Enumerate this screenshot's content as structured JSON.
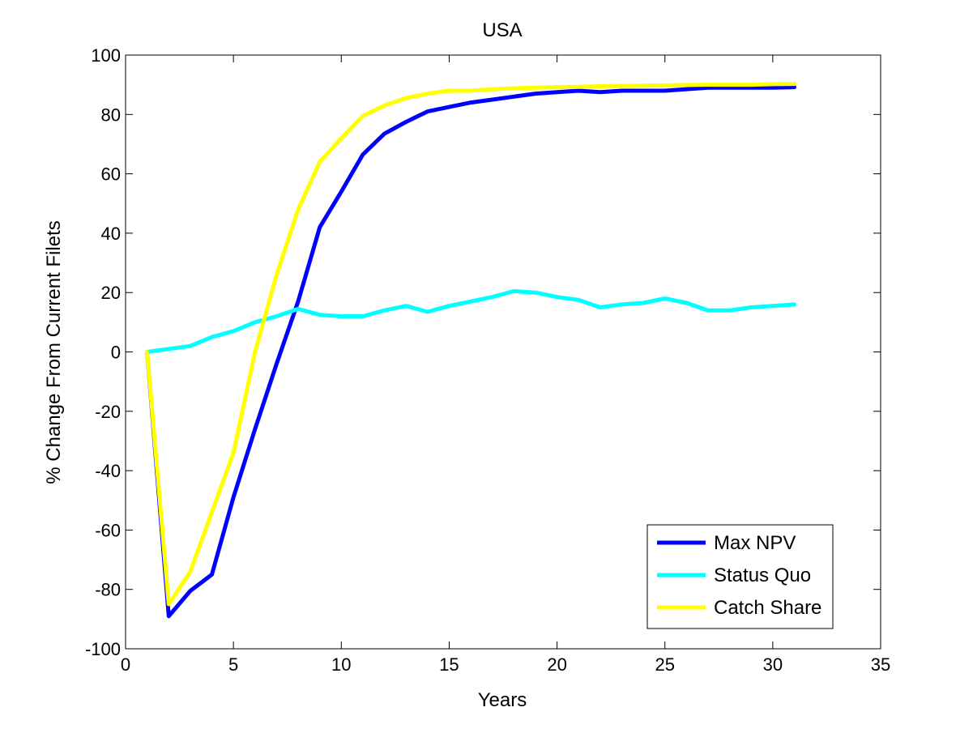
{
  "chart_data": {
    "type": "line",
    "title": "USA",
    "xlabel": "Years",
    "ylabel": "% Change From Current Filets",
    "xlim": [
      0,
      35
    ],
    "ylim": [
      -100,
      100
    ],
    "xticks": [
      0,
      5,
      10,
      15,
      20,
      25,
      30,
      35
    ],
    "yticks": [
      -100,
      -80,
      -60,
      -40,
      -20,
      0,
      20,
      40,
      60,
      80,
      100
    ],
    "grid": false,
    "legend_position": "bottom-right",
    "x": [
      1,
      2,
      3,
      4,
      5,
      6,
      7,
      8,
      9,
      10,
      11,
      12,
      13,
      14,
      15,
      16,
      17,
      18,
      19,
      20,
      21,
      22,
      23,
      24,
      25,
      26,
      27,
      28,
      29,
      30,
      31
    ],
    "series": [
      {
        "name": "Max NPV",
        "color": "#0000ff",
        "values": [
          0,
          -89,
          -80.5,
          -75,
          -49,
          -26,
          -4,
          17,
          42,
          54,
          66.5,
          73.5,
          77.5,
          81,
          82.5,
          84,
          85,
          86,
          87,
          87.5,
          88,
          87.5,
          88,
          88,
          88,
          88.5,
          89,
          89,
          89,
          89,
          89.2
        ]
      },
      {
        "name": "Status Quo",
        "color": "#00ffff",
        "values": [
          0,
          1,
          2,
          5,
          7,
          10,
          12,
          14.5,
          12.5,
          12,
          12,
          14,
          15.5,
          13.5,
          15.5,
          17,
          18.5,
          20.5,
          20,
          18.5,
          17.5,
          15,
          16,
          16.5,
          18,
          16.5,
          14,
          14,
          15,
          15.5,
          16
        ]
      },
      {
        "name": "Catch Share",
        "color": "#ffff00",
        "values": [
          0,
          -85,
          -74,
          -54,
          -34,
          0,
          26,
          48,
          64,
          72,
          79.5,
          83,
          85.5,
          87,
          88,
          88,
          88.5,
          88.8,
          89,
          89.2,
          89.3,
          89.5,
          89.6,
          89.7,
          89.8,
          89.9,
          90,
          90,
          90,
          90.2,
          90.3
        ]
      }
    ]
  }
}
